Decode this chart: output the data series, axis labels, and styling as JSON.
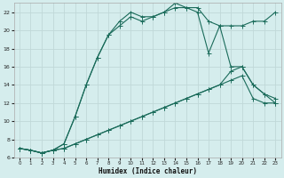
{
  "xlabel": "Humidex (Indice chaleur)",
  "background_color": "#d5eded",
  "grid_color": "#c0d8d8",
  "line_color": "#1a6b5a",
  "xlim": [
    -0.5,
    23.5
  ],
  "ylim": [
    6,
    23
  ],
  "xticks": [
    0,
    1,
    2,
    3,
    4,
    5,
    6,
    7,
    8,
    9,
    10,
    11,
    12,
    13,
    14,
    15,
    16,
    17,
    18,
    19,
    20,
    21,
    22,
    23
  ],
  "yticks": [
    6,
    8,
    10,
    12,
    14,
    16,
    18,
    20,
    22
  ],
  "line1_x": [
    0,
    1,
    2,
    3,
    4,
    5,
    6,
    7,
    8,
    9,
    10,
    11,
    12,
    13,
    14,
    15,
    16,
    17,
    18,
    19,
    20,
    21,
    22,
    23
  ],
  "line1_y": [
    7.0,
    6.8,
    6.5,
    6.8,
    7.0,
    7.5,
    8.0,
    8.5,
    9.0,
    9.5,
    10.0,
    10.5,
    11.0,
    11.5,
    12.0,
    12.5,
    13.0,
    13.5,
    14.0,
    14.5,
    15.0,
    12.5,
    12.0,
    12.0
  ],
  "line2_x": [
    0,
    1,
    2,
    3,
    4,
    5,
    6,
    7,
    8,
    9,
    10,
    11,
    12,
    13,
    14,
    15,
    16,
    17,
    18,
    19,
    20,
    21,
    22,
    23
  ],
  "line2_y": [
    7.0,
    6.8,
    6.5,
    6.8,
    7.0,
    7.5,
    8.0,
    8.5,
    9.0,
    9.5,
    10.0,
    10.5,
    11.0,
    11.5,
    12.0,
    12.5,
    13.0,
    13.5,
    14.0,
    15.5,
    16.0,
    14.0,
    13.0,
    12.0
  ],
  "line3_x": [
    0,
    1,
    2,
    3,
    4,
    5,
    6,
    7,
    8,
    9,
    10,
    11,
    12,
    13,
    14,
    15,
    16,
    17,
    18,
    19,
    20,
    21,
    22,
    23
  ],
  "line3_y": [
    7.0,
    6.8,
    6.5,
    6.8,
    7.5,
    10.5,
    14.0,
    17.0,
    19.5,
    20.5,
    21.5,
    21.0,
    21.5,
    22.0,
    22.5,
    22.5,
    22.0,
    17.5,
    20.5,
    16.0,
    16.0,
    14.0,
    13.0,
    12.5
  ],
  "line4_x": [
    0,
    1,
    2,
    3,
    4,
    5,
    6,
    7,
    8,
    9,
    10,
    11,
    12,
    13,
    14,
    15,
    16,
    17,
    18,
    19,
    20,
    21,
    22,
    23
  ],
  "line4_y": [
    7.0,
    6.8,
    6.5,
    6.8,
    7.5,
    10.5,
    14.0,
    17.0,
    19.5,
    21.0,
    22.0,
    21.5,
    21.5,
    22.0,
    23.0,
    22.5,
    22.5,
    21.0,
    20.5,
    20.5,
    20.5,
    21.0,
    21.0,
    22.0
  ]
}
